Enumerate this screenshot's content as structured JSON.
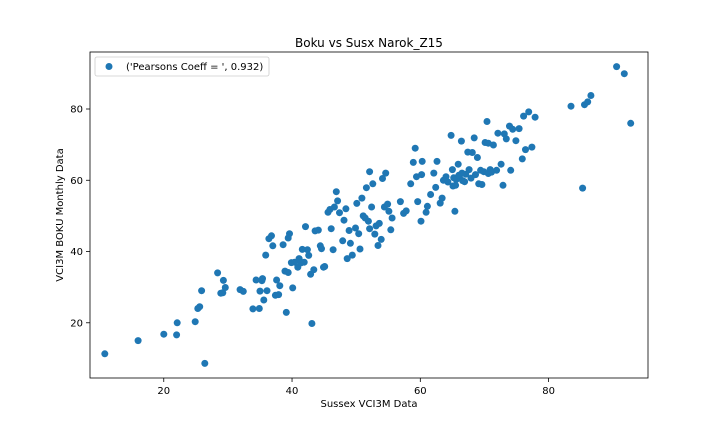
{
  "chart_data": {
    "type": "scatter",
    "title": "Boku vs Susx Narok_Z15",
    "xlabel": "Sussex VCI3M Data",
    "ylabel": "VCI3M BOKU Monthly Data",
    "xlim": [
      8.5,
      95.5
    ],
    "ylim": [
      4.5,
      96
    ],
    "xticks": [
      20,
      40,
      60,
      80
    ],
    "yticks": [
      20,
      40,
      60,
      80
    ],
    "grid": false,
    "legend_position": "top-left",
    "series": [
      {
        "name": "('Pearsons Coeff = ', 0.932)",
        "color": "#1f77b4",
        "points": [
          [
            10.8,
            11.3
          ],
          [
            16.0,
            15.0
          ],
          [
            20.0,
            16.8
          ],
          [
            22.0,
            16.6
          ],
          [
            22.1,
            20.0
          ],
          [
            24.9,
            20.3
          ],
          [
            25.3,
            24.0
          ],
          [
            25.6,
            24.5
          ],
          [
            25.9,
            29.0
          ],
          [
            26.4,
            8.6
          ],
          [
            28.4,
            34.0
          ],
          [
            28.9,
            28.3
          ],
          [
            29.2,
            28.4
          ],
          [
            29.3,
            31.9
          ],
          [
            29.6,
            29.9
          ],
          [
            31.9,
            29.3
          ],
          [
            32.4,
            28.8
          ],
          [
            33.9,
            23.9
          ],
          [
            34.4,
            32.0
          ],
          [
            34.9,
            24.0
          ],
          [
            35.0,
            28.9
          ],
          [
            35.3,
            31.8
          ],
          [
            35.4,
            32.4
          ],
          [
            35.6,
            26.4
          ],
          [
            35.9,
            39.0
          ],
          [
            36.1,
            29.0
          ],
          [
            36.4,
            43.6
          ],
          [
            36.8,
            44.4
          ],
          [
            37.0,
            41.6
          ],
          [
            37.4,
            27.7
          ],
          [
            37.6,
            32.0
          ],
          [
            37.9,
            27.9
          ],
          [
            38.1,
            30.4
          ],
          [
            38.6,
            41.9
          ],
          [
            38.9,
            34.5
          ],
          [
            39.1,
            22.9
          ],
          [
            39.4,
            34.1
          ],
          [
            39.6,
            45.0
          ],
          [
            39.9,
            36.9
          ],
          [
            40.1,
            29.8
          ],
          [
            39.4,
            43.8
          ],
          [
            40.4,
            37.0
          ],
          [
            40.9,
            35.6
          ],
          [
            41.1,
            38.0
          ],
          [
            41.4,
            36.8
          ],
          [
            41.6,
            40.6
          ],
          [
            41.9,
            37.0
          ],
          [
            42.1,
            47.0
          ],
          [
            42.4,
            40.5
          ],
          [
            42.6,
            38.9
          ],
          [
            42.9,
            33.6
          ],
          [
            43.1,
            19.8
          ],
          [
            43.4,
            34.9
          ],
          [
            43.6,
            45.8
          ],
          [
            44.1,
            46.0
          ],
          [
            44.4,
            41.6
          ],
          [
            44.6,
            40.8
          ],
          [
            44.9,
            35.6
          ],
          [
            45.1,
            35.8
          ],
          [
            45.6,
            51.0
          ],
          [
            45.9,
            51.8
          ],
          [
            46.1,
            46.4
          ],
          [
            46.4,
            40.5
          ],
          [
            46.6,
            52.5
          ],
          [
            46.9,
            56.8
          ],
          [
            47.1,
            54.2
          ],
          [
            47.4,
            50.9
          ],
          [
            47.9,
            43.0
          ],
          [
            48.1,
            48.8
          ],
          [
            48.4,
            52.0
          ],
          [
            48.6,
            38.0
          ],
          [
            48.9,
            45.9
          ],
          [
            49.1,
            42.3
          ],
          [
            49.4,
            39.0
          ],
          [
            49.9,
            46.6
          ],
          [
            50.1,
            53.5
          ],
          [
            50.4,
            45.0
          ],
          [
            50.6,
            40.7
          ],
          [
            50.9,
            55.0
          ],
          [
            51.1,
            50.0
          ],
          [
            51.4,
            49.4
          ],
          [
            51.6,
            57.9
          ],
          [
            51.9,
            48.5
          ],
          [
            52.1,
            46.4
          ],
          [
            52.1,
            62.4
          ],
          [
            52.4,
            52.5
          ],
          [
            52.6,
            59.0
          ],
          [
            52.9,
            44.9
          ],
          [
            53.1,
            47.2
          ],
          [
            53.4,
            41.7
          ],
          [
            53.6,
            47.9
          ],
          [
            53.9,
            43.4
          ],
          [
            54.1,
            60.5
          ],
          [
            54.4,
            52.5
          ],
          [
            54.6,
            62.0
          ],
          [
            54.9,
            53.3
          ],
          [
            55.1,
            51.3
          ],
          [
            55.4,
            46.1
          ],
          [
            55.6,
            49.4
          ],
          [
            56.9,
            54.0
          ],
          [
            57.4,
            50.7
          ],
          [
            57.8,
            51.4
          ],
          [
            58.5,
            59.0
          ],
          [
            58.9,
            65.0
          ],
          [
            59.2,
            69.0
          ],
          [
            59.4,
            61.0
          ],
          [
            59.6,
            54.0
          ],
          [
            60.2,
            61.6
          ],
          [
            60.3,
            65.3
          ],
          [
            60.1,
            48.5
          ],
          [
            60.9,
            51.0
          ],
          [
            61.1,
            52.7
          ],
          [
            61.6,
            56.0
          ],
          [
            62.1,
            62.0
          ],
          [
            62.4,
            58.0
          ],
          [
            62.6,
            65.3
          ],
          [
            63.1,
            53.6
          ],
          [
            63.4,
            55.0
          ],
          [
            64.3,
            59.5
          ],
          [
            64.8,
            72.6
          ],
          [
            65.1,
            58.4
          ],
          [
            65.4,
            51.3
          ],
          [
            65.6,
            60.2
          ],
          [
            65.9,
            64.5
          ],
          [
            66.1,
            60.8
          ],
          [
            66.4,
            71.0
          ],
          [
            66.6,
            59.9
          ],
          [
            66.9,
            59.6
          ],
          [
            67.1,
            61.7
          ],
          [
            67.4,
            67.9
          ],
          [
            67.6,
            63.0
          ],
          [
            67.9,
            60.6
          ],
          [
            68.1,
            67.8
          ],
          [
            68.4,
            71.9
          ],
          [
            68.6,
            61.6
          ],
          [
            68.9,
            66.4
          ],
          [
            69.1,
            59.0
          ],
          [
            69.4,
            62.8
          ],
          [
            69.6,
            58.8
          ],
          [
            69.9,
            62.4
          ],
          [
            70.1,
            70.6
          ],
          [
            70.4,
            76.5
          ],
          [
            70.6,
            61.9
          ],
          [
            70.9,
            63.0
          ],
          [
            71.1,
            62.3
          ],
          [
            71.4,
            69.9
          ],
          [
            71.9,
            62.8
          ],
          [
            72.1,
            73.2
          ],
          [
            72.6,
            64.5
          ],
          [
            72.9,
            58.6
          ],
          [
            73.1,
            73.0
          ],
          [
            73.4,
            71.6
          ],
          [
            73.9,
            75.2
          ],
          [
            74.1,
            62.8
          ],
          [
            74.4,
            74.3
          ],
          [
            74.9,
            71.1
          ],
          [
            75.4,
            74.5
          ],
          [
            75.9,
            66.0
          ],
          [
            76.1,
            78.0
          ],
          [
            76.4,
            68.6
          ],
          [
            76.9,
            79.2
          ],
          [
            77.4,
            69.3
          ],
          [
            77.9,
            77.7
          ],
          [
            83.5,
            80.8
          ],
          [
            85.3,
            57.8
          ],
          [
            85.6,
            81.2
          ],
          [
            86.1,
            82.0
          ],
          [
            86.6,
            83.8
          ],
          [
            90.6,
            91.9
          ],
          [
            91.8,
            89.9
          ],
          [
            92.8,
            76.0
          ],
          [
            65.2,
            60.7
          ],
          [
            65.5,
            58.6
          ],
          [
            66.0,
            61.4
          ],
          [
            65.0,
            63.0
          ],
          [
            64.0,
            61.0
          ],
          [
            66.5,
            62.0
          ],
          [
            63.6,
            60.0
          ],
          [
            70.6,
            70.4
          ]
        ]
      }
    ]
  }
}
